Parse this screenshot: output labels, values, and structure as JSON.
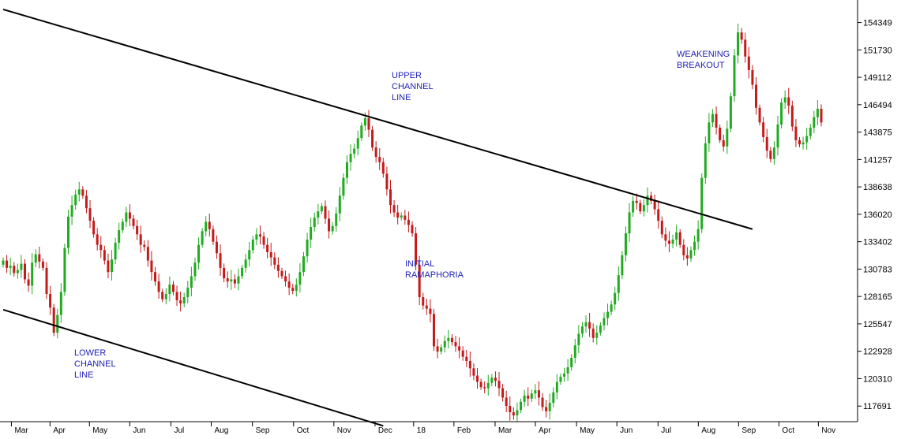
{
  "chart_data": {
    "type": "candlestick",
    "title": "",
    "xlabel": "",
    "ylabel": "",
    "ylim": [
      116200,
      156500
    ],
    "y_ticks": [
      154349,
      151730,
      149112,
      146494,
      143875,
      141257,
      138638,
      136020,
      133402,
      130783,
      128165,
      125547,
      122928,
      120310,
      117691
    ],
    "x_ticks": [
      "Mar",
      "Apr",
      "May",
      "Jun",
      "Jul",
      "Aug",
      "Sep",
      "Oct",
      "Nov",
      "Dec",
      "18",
      "Feb",
      "Mar",
      "Apr",
      "May",
      "Jun",
      "Jul",
      "Aug",
      "Sep",
      "Oct",
      "Nov"
    ],
    "up_color": "#22aa22",
    "down_color": "#c41a1a",
    "series": [
      {
        "values": [
          131600,
          130900,
          131100,
          130400,
          130700,
          131300,
          129800,
          129200,
          131400,
          132200,
          131500,
          130900,
          128400,
          127100,
          124700,
          126400,
          128600,
          132800,
          135800,
          136900,
          137900,
          138400,
          137800,
          136600,
          135400,
          134100,
          133100,
          132600,
          131600,
          130500,
          131700,
          133300,
          134500,
          135300,
          136200,
          135600,
          134900,
          134100,
          133100,
          132900,
          131600,
          130500,
          129600,
          128600,
          127900,
          128400,
          129300,
          128600,
          127800,
          127500,
          128100,
          129000,
          130100,
          131400,
          133100,
          134400,
          135300,
          134600,
          133400,
          132300,
          130900,
          129900,
          129600,
          129800,
          129400,
          130100,
          130900,
          131700,
          132600,
          133600,
          134100,
          133900,
          133100,
          132400,
          131900,
          131200,
          130600,
          130100,
          129600,
          129000,
          128700,
          129300,
          130500,
          132000,
          133600,
          134800,
          135700,
          136300,
          136800,
          135600,
          134400,
          134900,
          136100,
          137800,
          139500,
          141000,
          141800,
          142300,
          143300,
          144500,
          145200,
          144100,
          142400,
          141500,
          141000,
          139900,
          138400,
          136900,
          136200,
          135700,
          135900,
          135500,
          135000,
          134200,
          131200,
          128100,
          127300,
          127000,
          126500,
          123400,
          122900,
          123300,
          123900,
          124200,
          123800,
          123400,
          123000,
          122400,
          122000,
          121300,
          120600,
          120000,
          119500,
          119400,
          119900,
          120400,
          120100,
          119400,
          118500,
          117700,
          117100,
          116800,
          117300,
          118100,
          118700,
          118400,
          118900,
          119200,
          118500,
          117600,
          117200,
          118000,
          119000,
          120000,
          120500,
          120800,
          121400,
          122300,
          123500,
          124600,
          125300,
          125700,
          125100,
          124200,
          124700,
          125400,
          126100,
          126700,
          127400,
          128500,
          130200,
          132100,
          134200,
          136200,
          137300,
          137100,
          136300,
          136900,
          137800,
          137300,
          136500,
          135400,
          134100,
          133500,
          133200,
          133600,
          134300,
          133100,
          132100,
          131800,
          132600,
          133400,
          134600,
          139500,
          142800,
          144800,
          145600,
          144300,
          143100,
          142500,
          144200,
          147300,
          151200,
          153400,
          152700,
          151100,
          149800,
          148400,
          146200,
          144800,
          143400,
          142100,
          141300,
          142400,
          144600,
          146700,
          147200,
          146400,
          144400,
          143100,
          142700,
          142900,
          143500,
          144300,
          145300,
          146100,
          144800
        ]
      }
    ],
    "annotations": [
      {
        "lines": [
          "UPPER",
          "CHANNEL",
          "LINE"
        ]
      },
      {
        "lines": [
          "LOWER",
          "CHANNEL",
          "LINE"
        ]
      },
      {
        "lines": [
          "INITIAL",
          "RAMAPHORIA"
        ]
      },
      {
        "lines": [
          "WEAKENING",
          "BREAKOUT"
        ]
      }
    ],
    "trendlines": [
      {
        "name": "upper-channel-line",
        "x": [
          0,
          207
        ],
        "y": [
          155600,
          134600
        ]
      },
      {
        "name": "lower-channel-line",
        "x": [
          0,
          105
        ],
        "y": [
          126900,
          115800
        ]
      }
    ]
  }
}
